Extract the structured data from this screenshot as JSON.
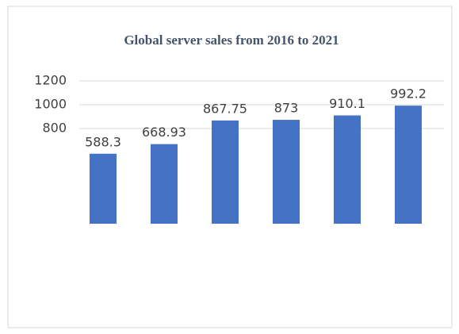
{
  "chart_data": {
    "type": "bar",
    "title": "Global server sales from 2016 to 2021",
    "categories": [
      null,
      null,
      null,
      null,
      null,
      null
    ],
    "values": [
      588.3,
      668.93,
      867.75,
      873,
      910.1,
      992.2
    ],
    "color": "#4472c4",
    "ylim": [
      0,
      1200
    ],
    "yticks": [
      800,
      1000,
      1200
    ],
    "grid": true
  }
}
